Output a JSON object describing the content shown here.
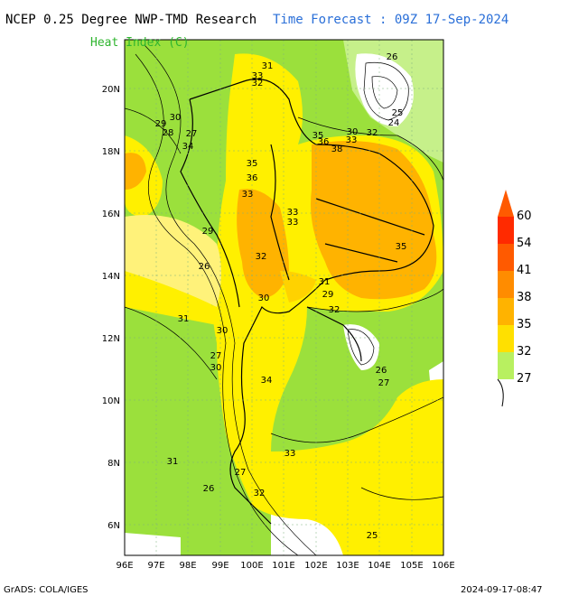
{
  "title_left": "NCEP 0.25 Degree NWP-TMD Research",
  "title_right": "Time Forecast : 09Z 17-Sep-2024",
  "subtitle": "Heat Index (C)",
  "footer_left": "GrADS: COLA/IGES",
  "footer_right": "2024-09-17-08:47",
  "x_ticks": [
    "96E",
    "97E",
    "98E",
    "99E",
    "100E",
    "101E",
    "102E",
    "103E",
    "104E",
    "105E",
    "106E"
  ],
  "y_ticks": [
    "20N",
    "18N",
    "16N",
    "14N",
    "12N",
    "10N",
    "8N",
    "6N"
  ],
  "legend": {
    "labels": [
      "60",
      "54",
      "41",
      "38",
      "35",
      "32",
      "27"
    ],
    "colors": [
      "#ff2a00",
      "#ff5a00",
      "#ff8c00",
      "#ffb300",
      "#ffd200",
      "#fff000",
      "#9ee03a",
      "#b8f060"
    ]
  },
  "contour_labels": [
    "31",
    "33",
    "32",
    "30",
    "29",
    "28",
    "27",
    "34",
    "35",
    "36",
    "33",
    "33",
    "33",
    "35",
    "36",
    "38",
    "35",
    "32",
    "31",
    "29",
    "30",
    "31",
    "30",
    "29",
    "26",
    "27",
    "34",
    "33",
    "30",
    "31",
    "26",
    "27",
    "32",
    "25",
    "26",
    "24",
    "25",
    "30",
    "33",
    "32",
    "26",
    "27",
    "32"
  ]
}
